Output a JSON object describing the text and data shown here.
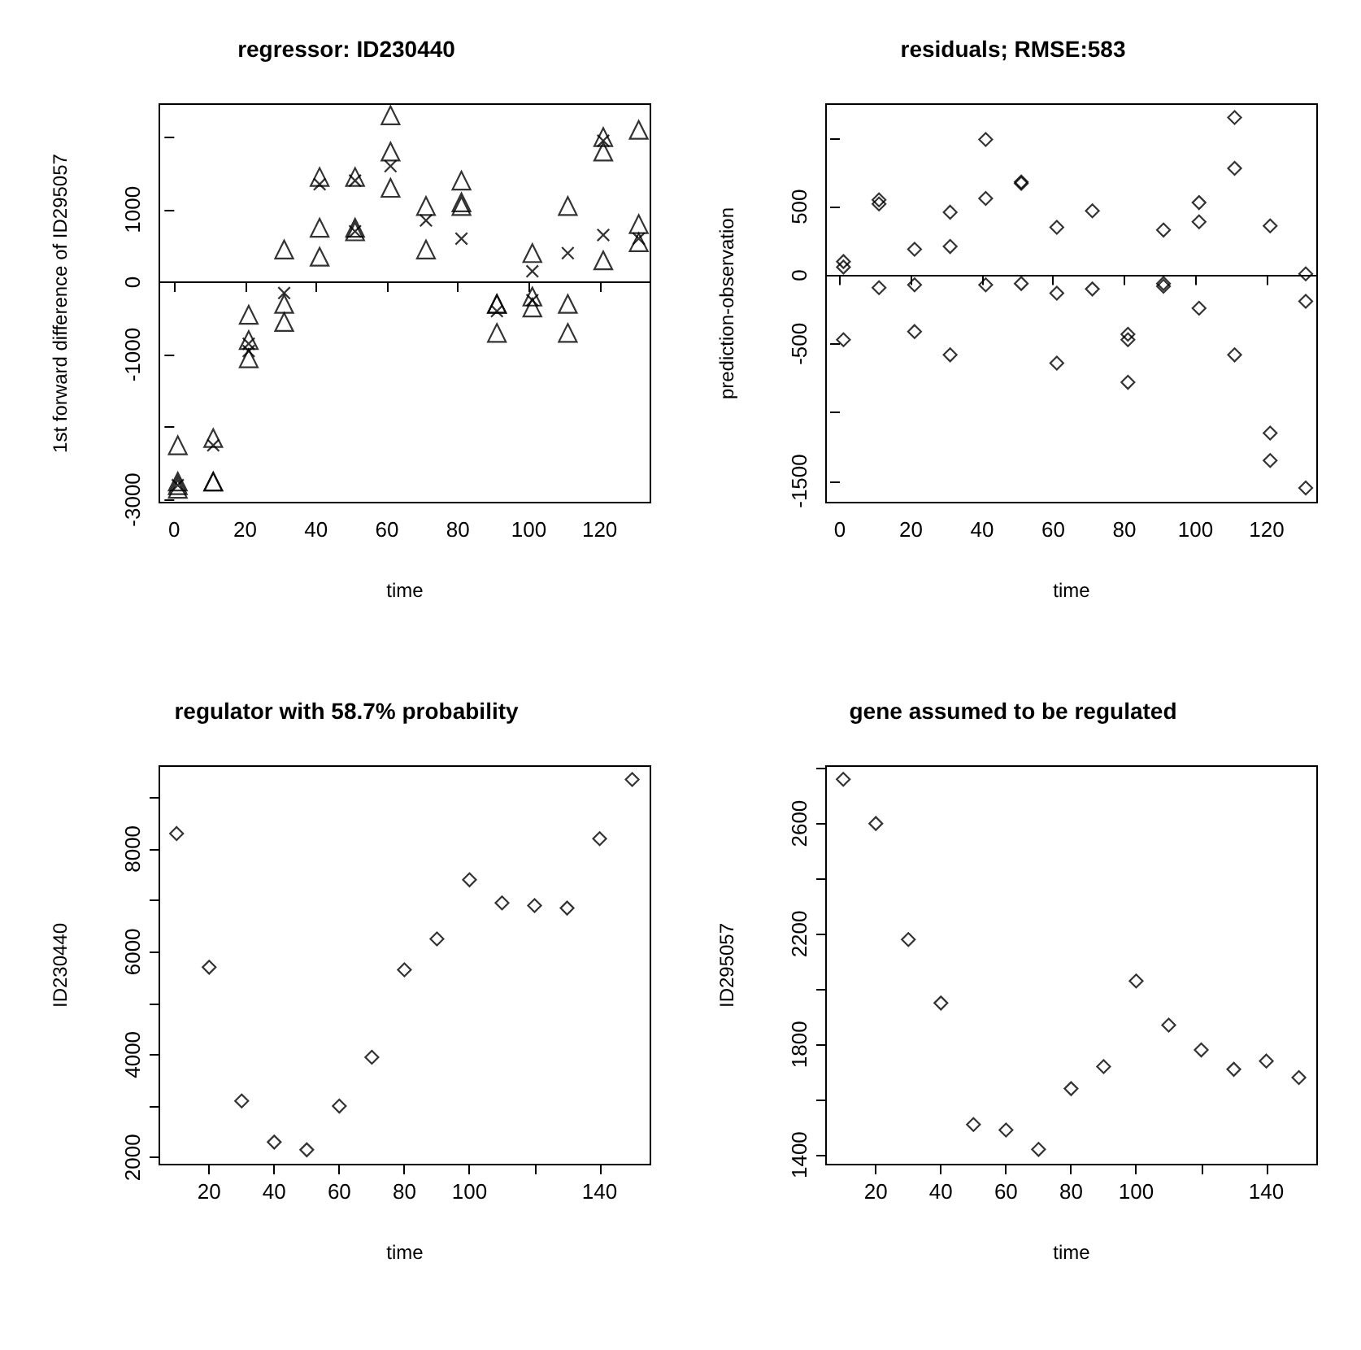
{
  "chart_data": [
    {
      "type": "scatter",
      "title": "regressor: ID230440",
      "xlabel": "time",
      "ylabel": "1st forward difference of ID295057",
      "xlim": [
        -4.2,
        134.3
      ],
      "ylim": [
        -3040,
        2455
      ],
      "xticks": [
        0,
        20,
        40,
        60,
        80,
        100,
        120
      ],
      "yticks": [
        -3000,
        {
          "value": -2000,
          "label": null
        },
        -1000,
        0,
        1000,
        {
          "value": 2000,
          "label": null
        }
      ],
      "ref_lines": [
        {
          "axis": "y",
          "value": 0,
          "color": "#000000"
        }
      ],
      "grid": false,
      "series": [
        {
          "color": "#000000",
          "marker": "triangle",
          "x": [
            1,
            1,
            1,
            1,
            11,
            11,
            11,
            21,
            21,
            21,
            31,
            31,
            31,
            41,
            41,
            41,
            51,
            51,
            51,
            61,
            61,
            61,
            71,
            71,
            81,
            81,
            81,
            91,
            91,
            91,
            101,
            101,
            101,
            111,
            111,
            111,
            121,
            121,
            121,
            131,
            131,
            131
          ],
          "values": [
            -2250,
            -2750,
            -2800,
            -2850,
            -2150,
            -2750,
            -2750,
            -450,
            -800,
            -1050,
            450,
            -300,
            -550,
            1450,
            750,
            350,
            1450,
            750,
            700,
            2300,
            1800,
            1300,
            1050,
            450,
            1400,
            1100,
            1050,
            -300,
            -300,
            -700,
            400,
            -200,
            -350,
            1050,
            -300,
            -700,
            2000,
            1800,
            300,
            2100,
            800,
            550
          ]
        },
        {
          "color": "#000000",
          "marker": "cross",
          "x": [
            1,
            11,
            21,
            21,
            31,
            41,
            51,
            51,
            61,
            71,
            81,
            91,
            101,
            101,
            111,
            121,
            121,
            131
          ],
          "values": [
            -2800,
            -2250,
            -850,
            -950,
            -150,
            1350,
            1400,
            700,
            1600,
            850,
            600,
            -400,
            150,
            -250,
            400,
            1950,
            650,
            600
          ]
        }
      ]
    },
    {
      "type": "scatter",
      "title": "residuals; RMSE:583",
      "xlabel": "time",
      "ylabel": "prediction-observation",
      "xlim": [
        -3.9,
        134.2
      ],
      "ylim": [
        -1657,
        1248
      ],
      "xticks": [
        0,
        20,
        40,
        60,
        80,
        100,
        120
      ],
      "yticks": [
        -1500,
        {
          "value": -1000,
          "label": null
        },
        -500,
        0,
        500,
        {
          "value": 1000,
          "label": null
        }
      ],
      "ref_lines": [
        {
          "axis": "y",
          "value": 0,
          "color": "#000000"
        }
      ],
      "grid": false,
      "marker": "diamond",
      "series": [
        {
          "color": "#000000",
          "x": [
            1,
            1,
            1,
            11,
            11,
            11,
            21,
            21,
            21,
            31,
            31,
            31,
            41,
            41,
            41,
            51,
            51,
            51,
            61,
            61,
            61,
            71,
            71,
            81,
            81,
            81,
            91,
            91,
            91,
            101,
            101,
            101,
            111,
            111,
            111,
            121,
            121,
            121,
            131,
            131,
            131
          ],
          "values": [
            100,
            60,
            -470,
            550,
            520,
            -90,
            190,
            -70,
            -410,
            460,
            210,
            -580,
            990,
            560,
            -70,
            680,
            670,
            -60,
            350,
            -130,
            -640,
            470,
            -100,
            -430,
            -470,
            -780,
            330,
            -60,
            -80,
            530,
            390,
            -240,
            1150,
            780,
            -580,
            360,
            -1150,
            -1350,
            10,
            -190,
            -1550
          ]
        }
      ]
    },
    {
      "type": "scatter",
      "title": "regulator with 58.7% probability",
      "xlabel": "time",
      "ylabel": "ID230440",
      "xlim": [
        4.7,
        155.6
      ],
      "ylim": [
        1863,
        9611
      ],
      "xticks": [
        20,
        40,
        60,
        80,
        100,
        {
          "value": 120,
          "label": null
        },
        140
      ],
      "yticks": [
        2000,
        {
          "value": 3000,
          "label": null
        },
        4000,
        {
          "value": 5000,
          "label": null
        },
        6000,
        {
          "value": 7000,
          "label": null
        },
        8000,
        {
          "value": 9000,
          "label": null
        }
      ],
      "grid": false,
      "marker": "diamond",
      "series": [
        {
          "color": "#000000",
          "x": [
            10,
            20,
            30,
            40,
            50,
            60,
            70,
            80,
            90,
            100,
            110,
            120,
            130,
            140,
            150
          ],
          "values": [
            8300,
            5700,
            3100,
            2300,
            2150,
            3000,
            3950,
            5650,
            6250,
            7400,
            6950,
            6900,
            6850,
            8200,
            9350
          ]
        }
      ]
    },
    {
      "type": "scatter",
      "title": "gene assumed to be regulated",
      "xlabel": "time",
      "ylabel": "ID295057",
      "xlim": [
        4.7,
        155.6
      ],
      "ylim": [
        1365,
        2808
      ],
      "xticks": [
        20,
        40,
        60,
        80,
        100,
        {
          "value": 120,
          "label": null
        },
        140
      ],
      "yticks": [
        1400,
        {
          "value": 1600,
          "label": null
        },
        1800,
        {
          "value": 2000,
          "label": null
        },
        2200,
        {
          "value": 2400,
          "label": null
        },
        2600,
        {
          "value": 2800,
          "label": null
        }
      ],
      "grid": false,
      "marker": "diamond",
      "series": [
        {
          "color": "#000000",
          "x": [
            10,
            20,
            30,
            40,
            50,
            60,
            70,
            80,
            90,
            100,
            110,
            120,
            130,
            140,
            150
          ],
          "values": [
            2760,
            2600,
            2180,
            1950,
            1510,
            1490,
            1420,
            1640,
            1720,
            2030,
            1870,
            1780,
            1710,
            1740,
            1680
          ]
        }
      ]
    }
  ]
}
